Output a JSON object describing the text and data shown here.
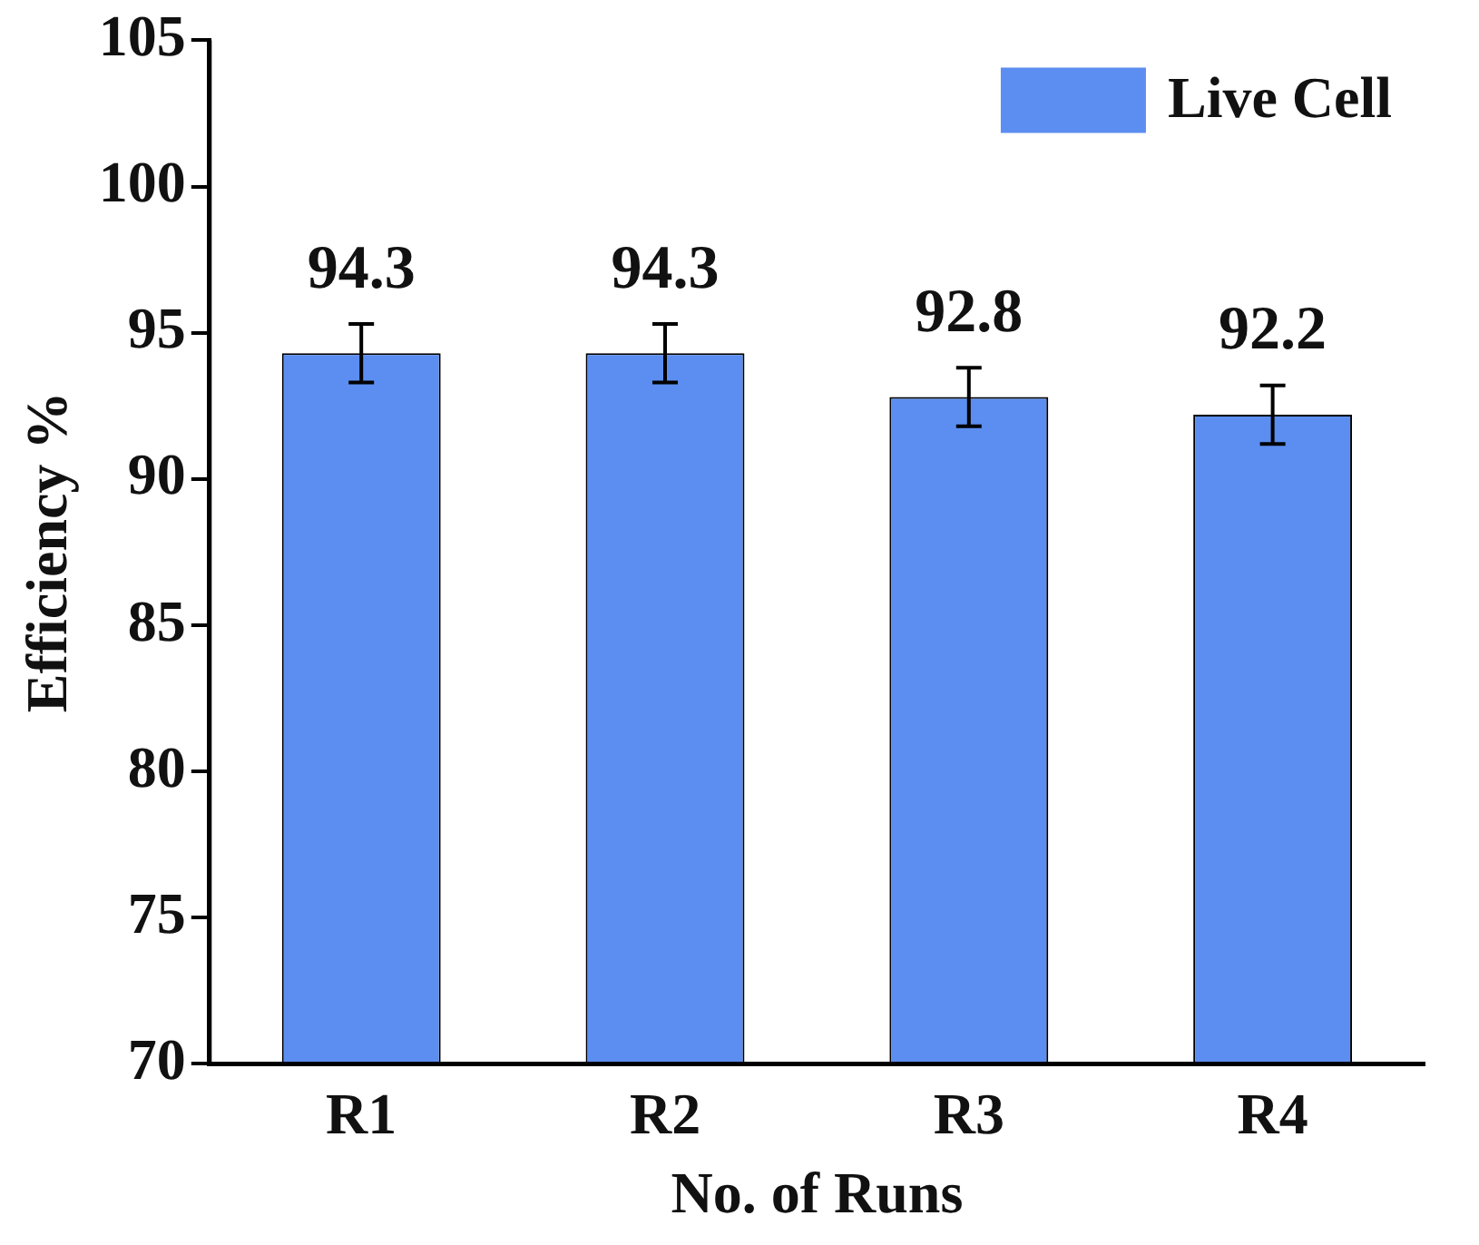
{
  "chart_data": {
    "type": "bar",
    "xlabel": "No. of Runs",
    "ylabel": "Efficiency %",
    "categories": [
      "R1",
      "R2",
      "R3",
      "R4"
    ],
    "series": [
      {
        "name": "Live Cell",
        "color": "#5b8ef0",
        "values": [
          94.3,
          94.3,
          92.8,
          92.2
        ],
        "errors": [
          1,
          1,
          1,
          1
        ]
      }
    ],
    "ylim": [
      70,
      105
    ],
    "yticks": [
      70,
      75,
      80,
      85,
      90,
      95,
      100,
      105
    ],
    "grid": false,
    "legend": "top right",
    "data_labels": true
  }
}
